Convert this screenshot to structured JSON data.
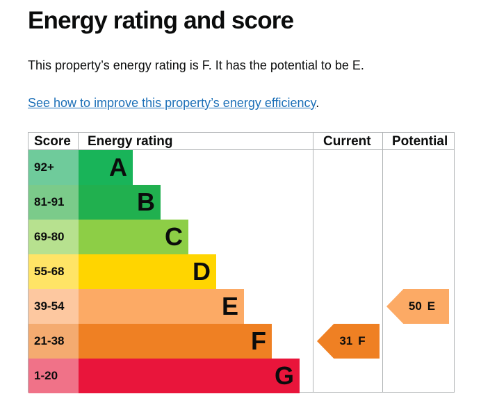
{
  "page": {
    "title": "Energy rating and score",
    "summary": "This property’s energy rating is F. It has the potential to be E.",
    "link_text": "See how to improve this property’s energy efficiency",
    "link_trailing": "."
  },
  "epc_table": {
    "headers": {
      "score": "Score",
      "energy_rating": "Energy rating",
      "current": "Current",
      "potential": "Potential"
    },
    "bands": [
      {
        "score": "92+",
        "letter": "A",
        "color": "#19b459",
        "score_bg": "#6fcb9b"
      },
      {
        "score": "81-91",
        "letter": "B",
        "color": "#21b04f",
        "score_bg": "#7bcb8a"
      },
      {
        "score": "69-80",
        "letter": "C",
        "color": "#8dce46",
        "score_bg": "#b7e18f"
      },
      {
        "score": "55-68",
        "letter": "D",
        "color": "#ffd500",
        "score_bg": "#ffe466"
      },
      {
        "score": "39-54",
        "letter": "E",
        "color": "#fcaa65",
        "score_bg": "#fdc8a0"
      },
      {
        "score": "21-38",
        "letter": "F",
        "color": "#ef8023",
        "score_bg": "#f4ab70"
      },
      {
        "score": "1-20",
        "letter": "G",
        "color": "#e9153b",
        "score_bg": "#f07288"
      }
    ],
    "current": {
      "score": "31",
      "letter": "F",
      "color": "#ef8023"
    },
    "potential": {
      "score": "50",
      "letter": "E",
      "color": "#fcaa65"
    }
  }
}
